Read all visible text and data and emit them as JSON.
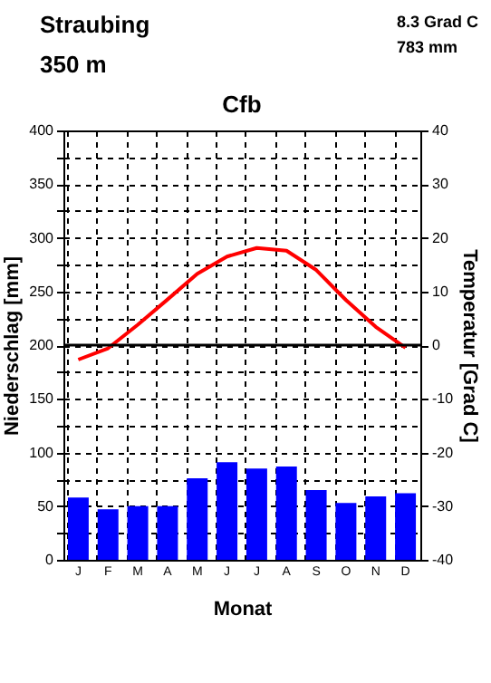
{
  "chart_data": {
    "type": "bar",
    "title": "Cfb",
    "annotations": [
      "Straubing",
      "350 m",
      "8.3 Grad C",
      "783 mm"
    ],
    "categories": [
      "J",
      "F",
      "M",
      "A",
      "M",
      "J",
      "J",
      "A",
      "S",
      "O",
      "N",
      "D"
    ],
    "series": [
      {
        "color": "#0000ff",
        "values": [
          58,
          47,
          50,
          50,
          76,
          91,
          85,
          87,
          65,
          53,
          59,
          62
        ]
      },
      {
        "type": "line",
        "axis": "y2",
        "color": "#ff0000",
        "values": [
          -2.7,
          -0.6,
          3.8,
          8.5,
          13.3,
          16.5,
          18.1,
          17.6,
          14.0,
          8.4,
          3.4,
          -0.5
        ]
      }
    ],
    "xlabel": "Monat",
    "ylabel": "Niederschlag [mm]",
    "y2label": "Temperatur [Grad C]",
    "ylim": [
      0,
      400
    ],
    "yticks": [
      0,
      {
        "value": 25,
        "label": null
      },
      50,
      {
        "value": 75,
        "label": null
      },
      100,
      {
        "value": 125,
        "label": null
      },
      150,
      {
        "value": 175,
        "label": null
      },
      200,
      {
        "value": 225,
        "label": null
      },
      250,
      {
        "value": 275,
        "label": null
      },
      300,
      {
        "value": 325,
        "label": null
      },
      350,
      {
        "value": 375,
        "label": null
      },
      400
    ],
    "y2lim": [
      -40,
      40
    ],
    "y2ticks": [
      -40,
      -30,
      -20,
      -10,
      0,
      10,
      20,
      30,
      40
    ],
    "ref_lines": [
      {
        "axis": "y2",
        "value": 0,
        "color": "#000000",
        "line_style": "solid"
      }
    ],
    "grid": true,
    "marker": "none",
    "line_style": "solid"
  }
}
